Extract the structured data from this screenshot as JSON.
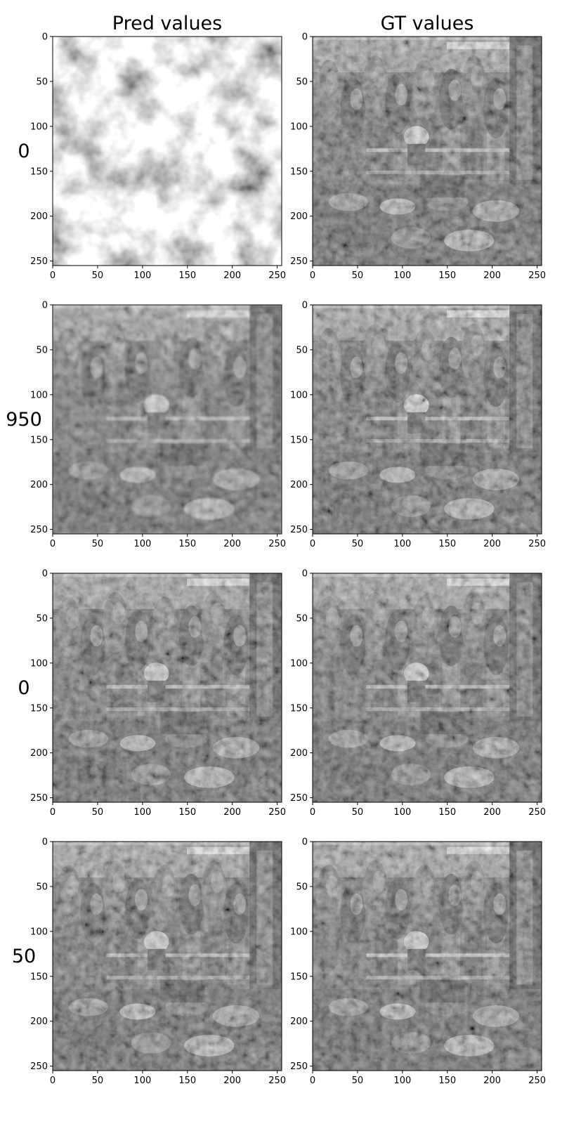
{
  "figure": {
    "columns": [
      {
        "key": "pred",
        "title": "Pred values"
      },
      {
        "key": "gt",
        "title": "GT values"
      }
    ],
    "rows": [
      {
        "label": "0",
        "pred_kind": "noise"
      },
      {
        "label": "950",
        "pred_kind": "blurred"
      },
      {
        "label": "0",
        "pred_kind": "sharp"
      },
      {
        "label": "50",
        "pred_kind": "sharp"
      }
    ]
  },
  "chart_data": {
    "type": "heatmap",
    "colormap": "gray",
    "x_ticks": [
      0,
      50,
      100,
      150,
      200,
      250
    ],
    "y_ticks": [
      0,
      50,
      100,
      150,
      200,
      250
    ],
    "xlim": [
      0,
      255
    ],
    "ylim": [
      255,
      0
    ],
    "grid": false
  }
}
